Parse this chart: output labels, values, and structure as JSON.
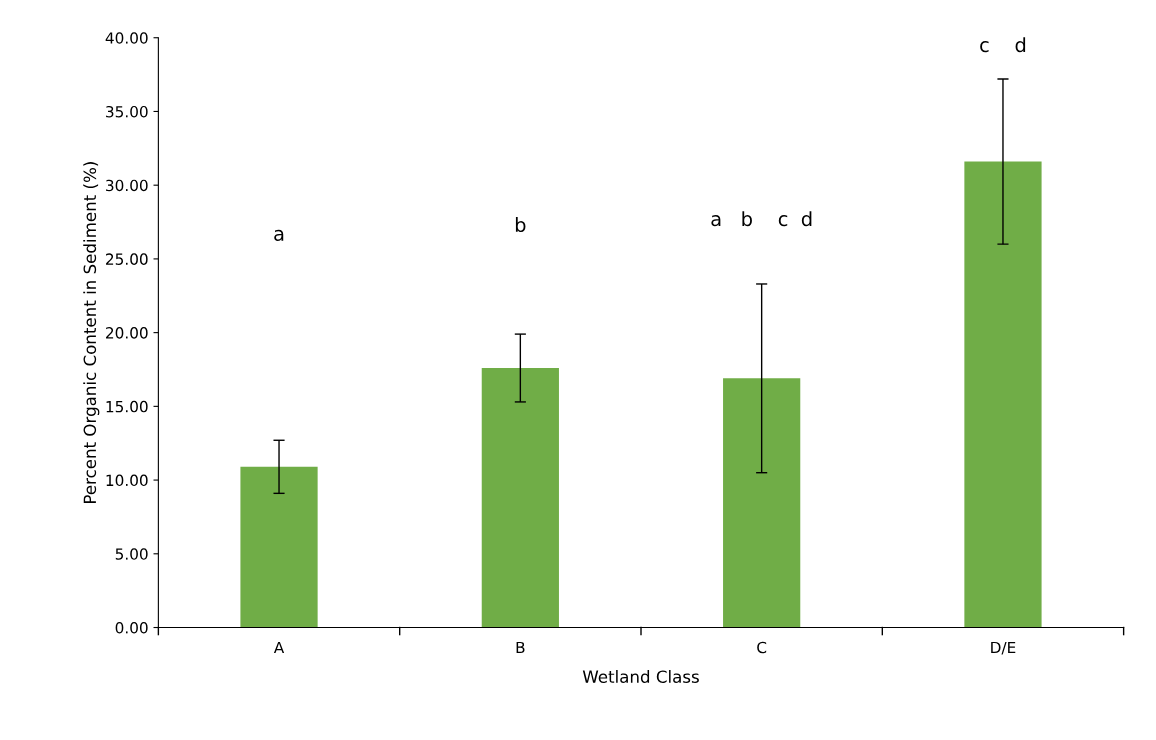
{
  "chart_data": {
    "type": "bar",
    "xlabel": "Wetland Class",
    "ylabel": "Percent Organic Content in Sediment (%)",
    "categories": [
      "A",
      "B",
      "C",
      "D/E"
    ],
    "values": [
      10.9,
      17.6,
      16.9,
      31.6
    ],
    "errors": [
      1.8,
      2.3,
      6.4,
      5.6
    ],
    "color": "#70ad47",
    "ylim": [
      0,
      40
    ],
    "yticks": [
      {
        "value": 0,
        "label": "0.00"
      },
      {
        "value": 5,
        "label": "5.00"
      },
      {
        "value": 10,
        "label": "10.00"
      },
      {
        "value": 15,
        "label": "15.00"
      },
      {
        "value": 20,
        "label": "20.00"
      },
      {
        "value": 25,
        "label": "25.00"
      },
      {
        "value": 30,
        "label": "30.00"
      },
      {
        "value": 35,
        "label": "35.00"
      },
      {
        "value": 40,
        "label": "40.00"
      }
    ],
    "grid": false,
    "annotations": [
      "a",
      "b",
      "a   b    c  d",
      "c    d"
    ]
  }
}
